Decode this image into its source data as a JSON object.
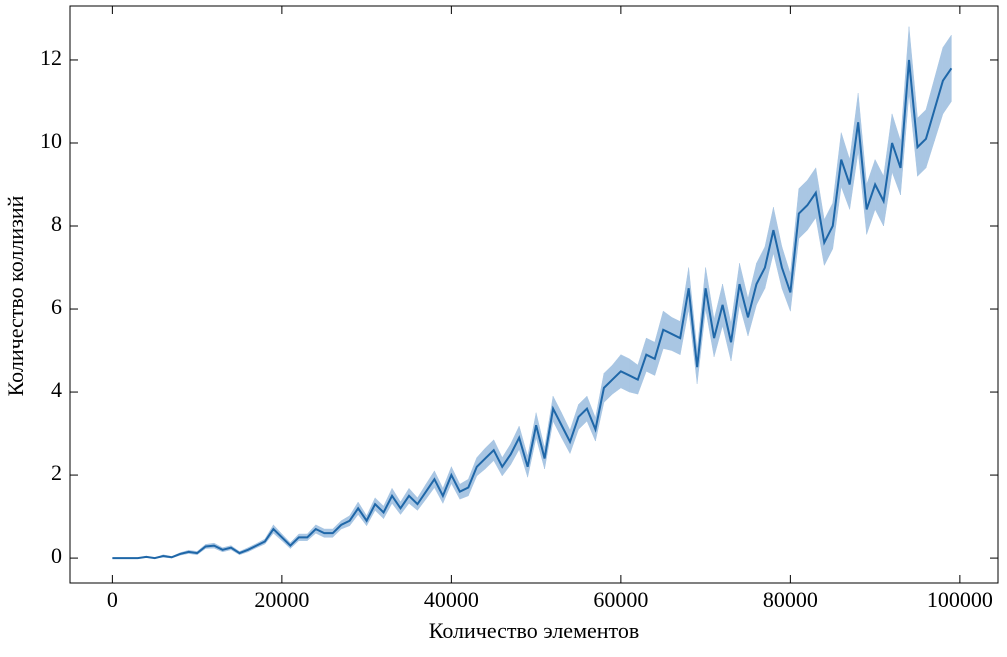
{
  "chart_data": {
    "type": "line",
    "xlabel": "Количество элементов",
    "ylabel": "Количество коллизий",
    "x": [
      0,
      1000,
      2000,
      3000,
      4000,
      5000,
      6000,
      7000,
      8000,
      9000,
      10000,
      11000,
      12000,
      13000,
      14000,
      15000,
      16000,
      17000,
      18000,
      19000,
      20000,
      21000,
      22000,
      23000,
      24000,
      25000,
      26000,
      27000,
      28000,
      29000,
      30000,
      31000,
      32000,
      33000,
      34000,
      35000,
      36000,
      37000,
      38000,
      39000,
      40000,
      41000,
      42000,
      43000,
      44000,
      45000,
      46000,
      47000,
      48000,
      49000,
      50000,
      51000,
      52000,
      53000,
      54000,
      55000,
      56000,
      57000,
      58000,
      59000,
      60000,
      61000,
      62000,
      63000,
      64000,
      65000,
      66000,
      67000,
      68000,
      69000,
      70000,
      71000,
      72000,
      73000,
      74000,
      75000,
      76000,
      77000,
      78000,
      79000,
      80000,
      81000,
      82000,
      83000,
      84000,
      85000,
      86000,
      87000,
      88000,
      89000,
      90000,
      91000,
      92000,
      93000,
      94000,
      95000,
      96000,
      97000,
      98000,
      99000
    ],
    "series": [
      {
        "color": "#1f67a8",
        "band_color": "#a9c6e3",
        "values": [
          0,
          0,
          0,
          0,
          0.03,
          0,
          0.05,
          0.02,
          0.1,
          0.15,
          0.12,
          0.28,
          0.3,
          0.2,
          0.25,
          0.12,
          0.2,
          0.3,
          0.4,
          0.7,
          0.5,
          0.3,
          0.5,
          0.5,
          0.7,
          0.6,
          0.6,
          0.8,
          0.9,
          1.2,
          0.9,
          1.3,
          1.1,
          1.5,
          1.2,
          1.5,
          1.3,
          1.6,
          1.9,
          1.5,
          2.0,
          1.6,
          1.7,
          2.2,
          2.4,
          2.6,
          2.2,
          2.5,
          2.9,
          2.2,
          3.2,
          2.4,
          3.6,
          3.2,
          2.8,
          3.4,
          3.6,
          3.1,
          4.1,
          4.3,
          4.5,
          4.4,
          4.3,
          4.9,
          4.8,
          5.5,
          5.4,
          5.3,
          6.5,
          4.6,
          6.5,
          5.3,
          6.1,
          5.2,
          6.6,
          5.8,
          6.6,
          7.0,
          7.9,
          7.0,
          6.4,
          8.3,
          8.5,
          8.8,
          7.6,
          8.0,
          9.6,
          9.0,
          10.5,
          8.4,
          9.0,
          8.6,
          10.0,
          9.4,
          12.0,
          9.9,
          10.1,
          10.8,
          11.5,
          11.8
        ],
        "errors": [
          0,
          0,
          0,
          0,
          0.02,
          0,
          0.03,
          0.02,
          0.03,
          0.04,
          0.04,
          0.05,
          0.06,
          0.05,
          0.05,
          0.04,
          0.05,
          0.05,
          0.06,
          0.1,
          0.08,
          0.07,
          0.08,
          0.08,
          0.1,
          0.1,
          0.1,
          0.1,
          0.12,
          0.15,
          0.12,
          0.15,
          0.15,
          0.18,
          0.15,
          0.18,
          0.15,
          0.18,
          0.2,
          0.18,
          0.2,
          0.18,
          0.2,
          0.22,
          0.25,
          0.25,
          0.22,
          0.25,
          0.28,
          0.25,
          0.3,
          0.25,
          0.3,
          0.3,
          0.28,
          0.3,
          0.3,
          0.28,
          0.35,
          0.35,
          0.4,
          0.4,
          0.35,
          0.4,
          0.4,
          0.45,
          0.4,
          0.4,
          0.5,
          0.4,
          0.5,
          0.45,
          0.5,
          0.45,
          0.5,
          0.45,
          0.5,
          0.5,
          0.55,
          0.5,
          0.45,
          0.6,
          0.6,
          0.6,
          0.55,
          0.55,
          0.65,
          0.6,
          0.7,
          0.6,
          0.6,
          0.6,
          0.7,
          0.65,
          0.8,
          0.7,
          0.7,
          0.75,
          0.8,
          0.8
        ]
      }
    ],
    "xlim": [
      -5000,
      104500
    ],
    "ylim": [
      -0.6,
      13.3
    ],
    "xticks": [
      0,
      20000,
      40000,
      60000,
      80000,
      100000
    ],
    "yticks": [
      0,
      2,
      4,
      6,
      8,
      10,
      12
    ]
  }
}
